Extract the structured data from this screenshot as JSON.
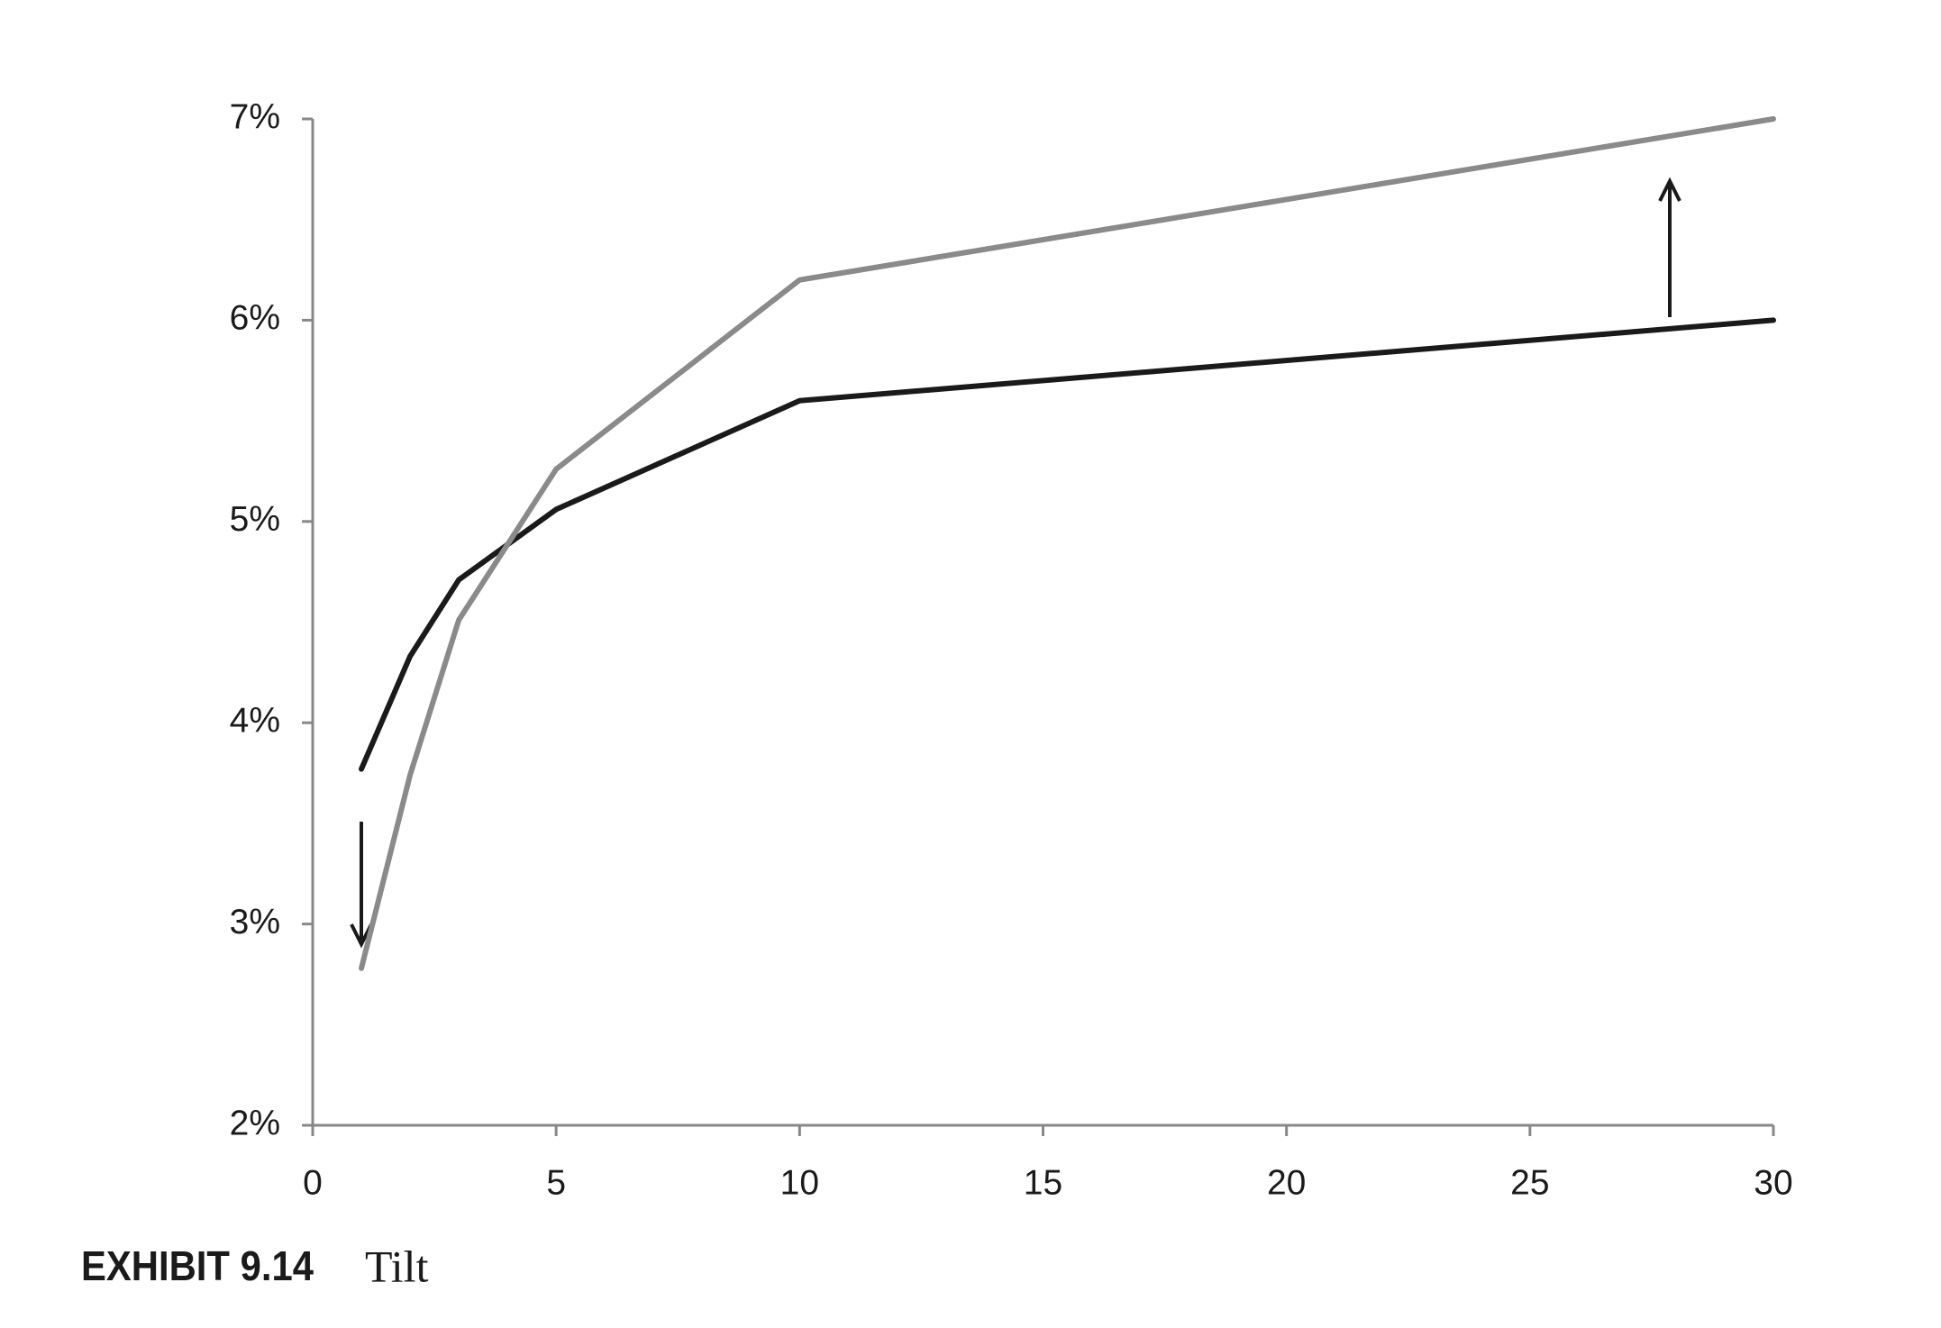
{
  "chart_data": {
    "type": "line",
    "x": [
      1,
      2,
      3,
      5,
      10,
      30
    ],
    "series": [
      {
        "color": "#1a1a1a",
        "values": [
          3.77,
          4.33,
          4.71,
          5.06,
          5.6,
          6.0
        ]
      },
      {
        "color": "#8a8a8a",
        "values": [
          2.78,
          3.74,
          4.51,
          5.26,
          6.2,
          7.0
        ]
      }
    ],
    "xlim": [
      0,
      30
    ],
    "xticks": [
      0,
      5,
      10,
      15,
      20,
      25,
      30
    ],
    "ylim": [
      2,
      7
    ],
    "yticks": [
      {
        "value": 2,
        "label": "2%"
      },
      {
        "value": 3,
        "label": "3%"
      },
      {
        "value": 4,
        "label": "4%"
      },
      {
        "value": 5,
        "label": "5%"
      },
      {
        "value": 6,
        "label": "6%"
      },
      {
        "value": 7,
        "label": "7%"
      }
    ],
    "grid": false,
    "caption": {
      "label": "EXHIBIT 9.14",
      "title": "Tilt"
    }
  }
}
